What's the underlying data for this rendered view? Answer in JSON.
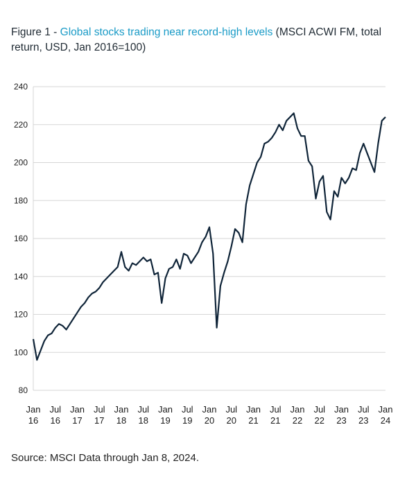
{
  "title": {
    "figure_label": "Figure 1 - ",
    "highlight": "Global stocks trading near record-high levels",
    "rest": " (MSCI ACWI FM, total return, USD, Jan 2016=100)"
  },
  "source": "Source: MSCI  Data through Jan 8, 2024.",
  "colors": {
    "line": "#0f2438",
    "grid": "#d6d6d6",
    "accent": "#1a9bc7"
  },
  "chart_data": {
    "type": "line",
    "title": "Global stocks trading near record-high levels",
    "xlabel": "",
    "ylabel": "",
    "ylim": [
      80,
      240
    ],
    "yticks": [
      80,
      100,
      120,
      140,
      160,
      180,
      200,
      220,
      240
    ],
    "xlim": [
      "2016-01",
      "2024-01"
    ],
    "xticks": [
      {
        "date": "2016-01",
        "label": [
          "Jan",
          "16"
        ]
      },
      {
        "date": "2016-07",
        "label": [
          "Jul",
          "16"
        ]
      },
      {
        "date": "2017-01",
        "label": [
          "Jan",
          "17"
        ]
      },
      {
        "date": "2017-07",
        "label": [
          "Jul",
          "17"
        ]
      },
      {
        "date": "2018-01",
        "label": [
          "Jan",
          "18"
        ]
      },
      {
        "date": "2018-07",
        "label": [
          "Jul",
          "18"
        ]
      },
      {
        "date": "2019-01",
        "label": [
          "Jan",
          "19"
        ]
      },
      {
        "date": "2019-07",
        "label": [
          "Jul",
          "19"
        ]
      },
      {
        "date": "2020-01",
        "label": [
          "Jan",
          "20"
        ]
      },
      {
        "date": "2020-07",
        "label": [
          "Jul",
          "20"
        ]
      },
      {
        "date": "2021-01",
        "label": [
          "Jan",
          "21"
        ]
      },
      {
        "date": "2021-07",
        "label": [
          "Jul",
          "21"
        ]
      },
      {
        "date": "2022-01",
        "label": [
          "Jan",
          "22"
        ]
      },
      {
        "date": "2022-07",
        "label": [
          "Jul",
          "22"
        ]
      },
      {
        "date": "2023-01",
        "label": [
          "Jan",
          "23"
        ]
      },
      {
        "date": "2023-07",
        "label": [
          "Jul",
          "23"
        ]
      },
      {
        "date": "2024-01",
        "label": [
          "Jan",
          "24"
        ]
      }
    ],
    "grid": "horizontal",
    "series": [
      {
        "x": [
          "2016-01",
          "2016-02",
          "2016-03",
          "2016-04",
          "2016-05",
          "2016-06",
          "2016-07",
          "2016-08",
          "2016-09",
          "2016-10",
          "2016-11",
          "2016-12",
          "2017-01",
          "2017-02",
          "2017-03",
          "2017-04",
          "2017-05",
          "2017-06",
          "2017-07",
          "2017-08",
          "2017-09",
          "2017-10",
          "2017-11",
          "2017-12",
          "2018-01",
          "2018-02",
          "2018-03",
          "2018-04",
          "2018-05",
          "2018-06",
          "2018-07",
          "2018-08",
          "2018-09",
          "2018-10",
          "2018-11",
          "2018-12",
          "2019-01",
          "2019-02",
          "2019-03",
          "2019-04",
          "2019-05",
          "2019-06",
          "2019-07",
          "2019-08",
          "2019-09",
          "2019-10",
          "2019-11",
          "2019-12",
          "2020-01",
          "2020-02",
          "2020-03",
          "2020-04",
          "2020-05",
          "2020-06",
          "2020-07",
          "2020-08",
          "2020-09",
          "2020-10",
          "2020-11",
          "2020-12",
          "2021-01",
          "2021-02",
          "2021-03",
          "2021-04",
          "2021-05",
          "2021-06",
          "2021-07",
          "2021-08",
          "2021-09",
          "2021-10",
          "2021-11",
          "2021-12",
          "2022-01",
          "2022-02",
          "2022-03",
          "2022-04",
          "2022-05",
          "2022-06",
          "2022-07",
          "2022-08",
          "2022-09",
          "2022-10",
          "2022-11",
          "2022-12",
          "2023-01",
          "2023-02",
          "2023-03",
          "2023-04",
          "2023-05",
          "2023-06",
          "2023-07",
          "2023-08",
          "2023-09",
          "2023-10",
          "2023-11",
          "2023-12",
          "2024-01"
        ],
        "values": [
          107,
          96,
          101,
          106,
          109,
          110,
          113,
          115,
          114,
          112,
          115,
          118,
          121,
          124,
          126,
          129,
          131,
          132,
          134,
          137,
          139,
          141,
          143,
          145,
          153,
          145,
          143,
          147,
          146,
          148,
          150,
          148,
          149,
          141,
          142,
          126,
          139,
          144,
          145,
          149,
          144,
          152,
          151,
          147,
          150,
          153,
          158,
          161,
          166,
          152,
          113,
          135,
          142,
          148,
          156,
          165,
          163,
          158,
          178,
          188,
          194,
          200,
          203,
          210,
          211,
          213,
          216,
          220,
          217,
          222,
          224,
          226,
          218,
          214,
          214,
          201,
          198,
          181,
          190,
          193,
          174,
          170,
          185,
          182,
          192,
          189,
          192,
          197,
          196,
          205,
          210,
          205,
          200,
          195,
          210,
          222,
          224
        ]
      }
    ]
  }
}
